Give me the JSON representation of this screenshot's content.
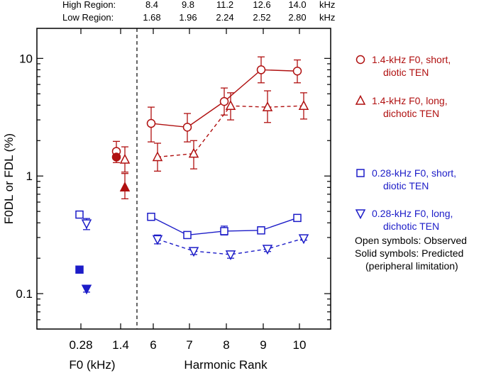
{
  "colors": {
    "red": "#b01010",
    "blue": "#1c1cc8",
    "axis": "#000000"
  },
  "top_header": {
    "high_label": "High Region:",
    "high_values": [
      "8.4",
      "9.8",
      "11.2",
      "12.6",
      "14.0"
    ],
    "high_unit": "kHz",
    "low_label": "Low Region:",
    "low_values": [
      "1.68",
      "1.96",
      "2.24",
      "2.52",
      "2.80"
    ],
    "low_unit": "kHz"
  },
  "chart_data": {
    "type": "line",
    "ylabel": "F0DL or FDL (%)",
    "yscale": "log",
    "ylim": [
      0.05,
      18
    ],
    "ytick_values": [
      0.1,
      1,
      10
    ],
    "ytick_labels": [
      "0.1",
      "1",
      "10"
    ],
    "xlabel_left": "F0 (kHz)",
    "xlabel_right": "Harmonic Rank",
    "xtick_labels": [
      "0.28",
      "1.4",
      "6",
      "7",
      "8",
      "9",
      "10"
    ],
    "legend_position": "right",
    "series": [
      {
        "name": "1.4-kHz F0, short, diotic TEN",
        "color": "red",
        "marker": "circle",
        "line": "solid",
        "points": [
          {
            "x": "6",
            "y": 2.8,
            "low": 1.95,
            "high": 3.85
          },
          {
            "x": "7",
            "y": 2.6,
            "low": 1.95,
            "high": 3.4
          },
          {
            "x": "8",
            "y": 4.3,
            "low": 3.3,
            "high": 5.6
          },
          {
            "x": "9",
            "y": 8.0,
            "low": 6.2,
            "high": 10.3
          },
          {
            "x": "10",
            "y": 7.8,
            "low": 6.2,
            "high": 9.7
          }
        ],
        "f0_point": {
          "x": "1.4",
          "y": 1.62,
          "low": 1.3,
          "high": 1.97
        },
        "predicted": {
          "x": "1.4",
          "y": 1.45
        }
      },
      {
        "name": "1.4-kHz F0, long, dichotic TEN",
        "color": "red",
        "marker": "triangle-up",
        "line": "dashed",
        "points": [
          {
            "x": "6",
            "y": 1.45,
            "low": 1.1,
            "high": 1.9
          },
          {
            "x": "7",
            "y": 1.55,
            "low": 1.15,
            "high": 2.0
          },
          {
            "x": "8",
            "y": 3.95,
            "low": 3.0,
            "high": 5.1
          },
          {
            "x": "9",
            "y": 3.85,
            "low": 2.85,
            "high": 5.3
          },
          {
            "x": "10",
            "y": 3.95,
            "low": 3.05,
            "high": 5.1
          }
        ],
        "f0_point": {
          "x": "1.4",
          "y": 1.38,
          "low": 1.08,
          "high": 1.77
        },
        "predicted": {
          "x": "1.4",
          "y": 0.8,
          "low": 0.64,
          "high": 1.05
        }
      },
      {
        "name": "0.28-kHz F0, short, diotic TEN",
        "color": "blue",
        "marker": "square",
        "line": "solid",
        "points": [
          {
            "x": "6",
            "y": 0.45,
            "low": 0.42,
            "high": 0.48
          },
          {
            "x": "7",
            "y": 0.315,
            "low": 0.305,
            "high": 0.325
          },
          {
            "x": "8",
            "y": 0.34,
            "low": 0.315,
            "high": 0.375
          },
          {
            "x": "9",
            "y": 0.345,
            "low": 0.325,
            "high": 0.37
          },
          {
            "x": "10",
            "y": 0.44,
            "low": 0.425,
            "high": 0.455
          }
        ],
        "f0_point": {
          "x": "0.28",
          "y": 0.47,
          "low": 0.445,
          "high": 0.5
        },
        "predicted": {
          "x": "0.28",
          "y": 0.16
        }
      },
      {
        "name": "0.28-kHz F0, long, dichotic TEN",
        "color": "blue",
        "marker": "triangle-down",
        "line": "dashed",
        "points": [
          {
            "x": "6",
            "y": 0.29,
            "low": 0.265,
            "high": 0.315
          },
          {
            "x": "7",
            "y": 0.23,
            "low": 0.215,
            "high": 0.245
          },
          {
            "x": "8",
            "y": 0.215,
            "low": 0.2,
            "high": 0.23
          },
          {
            "x": "9",
            "y": 0.24,
            "low": 0.228,
            "high": 0.255
          },
          {
            "x": "10",
            "y": 0.295,
            "low": 0.285,
            "high": 0.305
          }
        ],
        "f0_point": {
          "x": "0.28",
          "y": 0.395,
          "low": 0.35,
          "high": 0.435
        },
        "predicted": {
          "x": "0.28",
          "y": 0.11,
          "low": 0.103,
          "high": 0.117
        }
      }
    ]
  },
  "legend": {
    "entries": [
      {
        "color": "red",
        "marker": "circle",
        "line1": "1.4-kHz F0, short,",
        "line2": "diotic TEN"
      },
      {
        "color": "red",
        "marker": "triangle-up",
        "line1": "1.4-kHz F0, long,",
        "line2": "dichotic TEN"
      },
      {
        "color": "blue",
        "marker": "square",
        "line1": "0.28-kHz F0, short,",
        "line2": "diotic TEN"
      },
      {
        "color": "blue",
        "marker": "triangle-down",
        "line1": "0.28-kHz F0, long,",
        "line2": "dichotic TEN"
      }
    ],
    "notes": [
      "Open symbols: Observed",
      "Solid symbols: Predicted",
      "(peripheral limitation)"
    ]
  }
}
